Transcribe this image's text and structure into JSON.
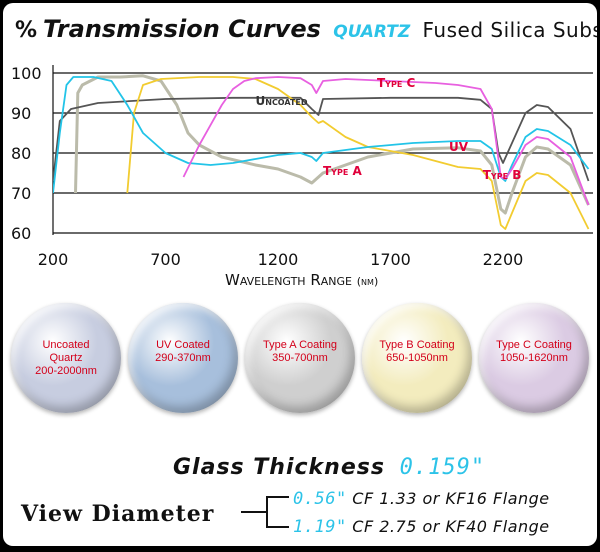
{
  "header": {
    "percent_symbol": "%",
    "title_main": "Transmission Curves",
    "title_material": "quartz",
    "title_sub": "Fused Silica Substrate"
  },
  "chart_data": {
    "type": "line",
    "title": "Transmission Curves quartz Fused Silica Substrate",
    "xlabel": "Wavelength Range",
    "xlabel_unit": "(nm)",
    "ylabel": "%",
    "xlim": [
      200,
      2600
    ],
    "ylim": [
      60,
      100
    ],
    "x_ticks": [
      200,
      700,
      1200,
      1700,
      2200
    ],
    "y_ticks": [
      100,
      90,
      80,
      70,
      60
    ],
    "grid": "horizontal",
    "series": [
      {
        "name": "Uncoated",
        "color": "#555555",
        "label_at": [
          1100,
          92
        ],
        "points": [
          [
            200,
            73
          ],
          [
            230,
            88
          ],
          [
            280,
            91
          ],
          [
            400,
            92.5
          ],
          [
            700,
            93.5
          ],
          [
            1000,
            93.8
          ],
          [
            1300,
            93.8
          ],
          [
            1350,
            91
          ],
          [
            1380,
            89.5
          ],
          [
            1400,
            93.5
          ],
          [
            1700,
            93.8
          ],
          [
            2000,
            93.8
          ],
          [
            2100,
            93.3
          ],
          [
            2150,
            91
          ],
          [
            2180,
            80
          ],
          [
            2200,
            77.5
          ],
          [
            2220,
            80
          ],
          [
            2300,
            90
          ],
          [
            2350,
            92
          ],
          [
            2400,
            91.5
          ],
          [
            2500,
            86
          ],
          [
            2580,
            73
          ]
        ]
      },
      {
        "name": "UV",
        "color": "#22c4e8",
        "label_at": [
          1960,
          80.5
        ],
        "points": [
          [
            200,
            70
          ],
          [
            230,
            85
          ],
          [
            260,
            97
          ],
          [
            290,
            99
          ],
          [
            380,
            99
          ],
          [
            460,
            98
          ],
          [
            530,
            92
          ],
          [
            600,
            85
          ],
          [
            700,
            80
          ],
          [
            800,
            77.5
          ],
          [
            900,
            77
          ],
          [
            1000,
            77.5
          ],
          [
            1100,
            78.5
          ],
          [
            1200,
            79.5
          ],
          [
            1300,
            80
          ],
          [
            1350,
            79
          ],
          [
            1370,
            78
          ],
          [
            1400,
            80
          ],
          [
            1600,
            81.5
          ],
          [
            1800,
            82.5
          ],
          [
            2000,
            83
          ],
          [
            2100,
            83
          ],
          [
            2150,
            81
          ],
          [
            2190,
            74
          ],
          [
            2210,
            73
          ],
          [
            2240,
            77
          ],
          [
            2300,
            84
          ],
          [
            2350,
            86
          ],
          [
            2400,
            85.5
          ],
          [
            2500,
            82
          ],
          [
            2580,
            76
          ]
        ]
      },
      {
        "name": "Type A",
        "color": "#bbbbaa",
        "label_at": [
          1400,
          74.5
        ],
        "points": [
          [
            300,
            70
          ],
          [
            310,
            95
          ],
          [
            330,
            97
          ],
          [
            400,
            99
          ],
          [
            500,
            99
          ],
          [
            600,
            99.3
          ],
          [
            680,
            98
          ],
          [
            750,
            92
          ],
          [
            800,
            85
          ],
          [
            850,
            82
          ],
          [
            950,
            79
          ],
          [
            1100,
            77
          ],
          [
            1200,
            76
          ],
          [
            1300,
            74
          ],
          [
            1350,
            72.5
          ],
          [
            1400,
            75
          ],
          [
            1600,
            79
          ],
          [
            1800,
            81
          ],
          [
            2000,
            81.3
          ],
          [
            2100,
            80.5
          ],
          [
            2150,
            77
          ],
          [
            2190,
            66
          ],
          [
            2210,
            65
          ],
          [
            2240,
            70
          ],
          [
            2300,
            79
          ],
          [
            2350,
            81.5
          ],
          [
            2400,
            81
          ],
          [
            2500,
            77
          ],
          [
            2580,
            67
          ]
        ]
      },
      {
        "name": "Type B",
        "color": "#f2cc30",
        "label_at": [
          2110,
          73.5
        ],
        "points": [
          [
            530,
            70
          ],
          [
            560,
            90
          ],
          [
            600,
            97
          ],
          [
            680,
            98.5
          ],
          [
            850,
            99
          ],
          [
            1000,
            99
          ],
          [
            1100,
            98.5
          ],
          [
            1200,
            96
          ],
          [
            1300,
            92
          ],
          [
            1350,
            89
          ],
          [
            1380,
            87.5
          ],
          [
            1400,
            88
          ],
          [
            1500,
            84
          ],
          [
            1600,
            81.5
          ],
          [
            1700,
            80.5
          ],
          [
            1800,
            79.5
          ],
          [
            1900,
            78
          ],
          [
            2000,
            76.5
          ],
          [
            2100,
            76
          ],
          [
            2150,
            73
          ],
          [
            2190,
            62
          ],
          [
            2210,
            61
          ],
          [
            2240,
            65
          ],
          [
            2300,
            73
          ],
          [
            2350,
            75
          ],
          [
            2400,
            74.5
          ],
          [
            2500,
            70
          ],
          [
            2580,
            61
          ]
        ]
      },
      {
        "name": "Type C",
        "color": "#e860e0",
        "label_at": [
          1640,
          96.5
        ],
        "points": [
          [
            780,
            74
          ],
          [
            850,
            82
          ],
          [
            950,
            92
          ],
          [
            1000,
            96
          ],
          [
            1050,
            98
          ],
          [
            1100,
            98.7
          ],
          [
            1200,
            99
          ],
          [
            1300,
            98.7
          ],
          [
            1350,
            97
          ],
          [
            1370,
            95
          ],
          [
            1400,
            98
          ],
          [
            1500,
            98.5
          ],
          [
            1700,
            98
          ],
          [
            1900,
            97.5
          ],
          [
            2000,
            97
          ],
          [
            2100,
            96
          ],
          [
            2150,
            91
          ],
          [
            2190,
            74
          ],
          [
            2210,
            73.5
          ],
          [
            2240,
            76
          ],
          [
            2300,
            82
          ],
          [
            2350,
            84
          ],
          [
            2400,
            83.5
          ],
          [
            2500,
            79
          ],
          [
            2580,
            67
          ]
        ]
      }
    ]
  },
  "discs": [
    {
      "label_1": "Uncoated",
      "label_2": "Quartz",
      "label_3": "200-2000nm",
      "color": "#c7cde0"
    },
    {
      "label_1": "UV Coated",
      "label_2": "290-370nm",
      "label_3": "",
      "color": "#a7bfdc"
    },
    {
      "label_1": "Type A Coating",
      "label_2": "350-700nm",
      "label_3": "",
      "color": "#cfcfcf"
    },
    {
      "label_1": "Type B Coating",
      "label_2": "650-1050nm",
      "label_3": "",
      "color": "#f3ecbe"
    },
    {
      "label_1": "Type C Coating",
      "label_2": "1050-1620nm",
      "label_3": "",
      "color": "#dbcbe3"
    }
  ],
  "specs": {
    "thickness_label": "Glass Thickness",
    "thickness_value": "0.159\"",
    "view_diameter_label": "View Diameter",
    "flanges": [
      {
        "size": "0.56\"",
        "desc": "CF 1.33 or KF16 Flange"
      },
      {
        "size": "1.19\"",
        "desc": "CF 2.75 or KF40 Flange"
      }
    ]
  }
}
